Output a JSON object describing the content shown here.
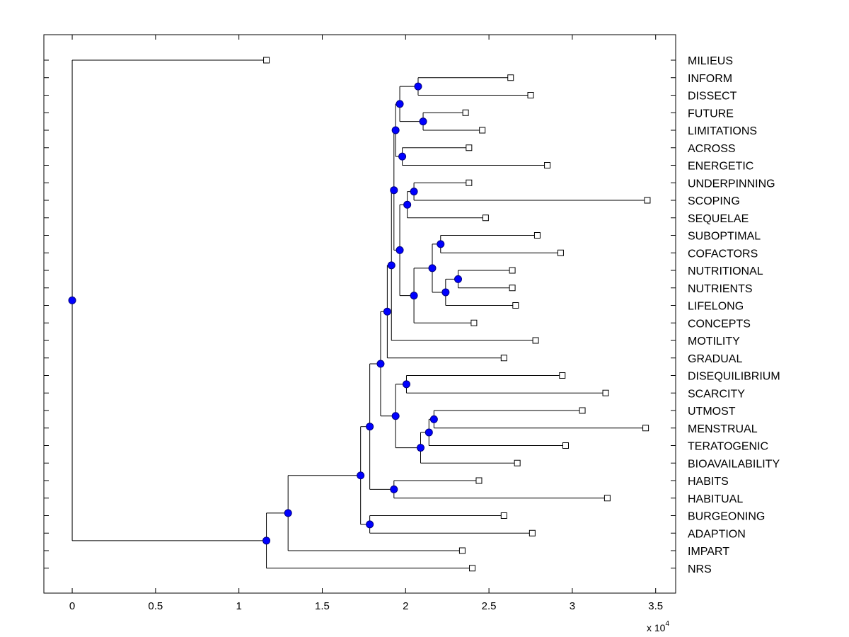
{
  "chart_data": {
    "type": "dendrogram",
    "title": "",
    "xlabel": "",
    "ylabel": "",
    "x_multiplier_label": "x 10",
    "x_multiplier_exponent": "4",
    "xlim": [
      -0.17,
      3.62
    ],
    "x_ticks": [
      {
        "value": 0,
        "label": "0"
      },
      {
        "value": 0.5,
        "label": "0.5"
      },
      {
        "value": 1,
        "label": "1"
      },
      {
        "value": 1.5,
        "label": "1.5"
      },
      {
        "value": 2,
        "label": "2"
      },
      {
        "value": 2.5,
        "label": "2.5"
      },
      {
        "value": 3,
        "label": "3"
      },
      {
        "value": 3.5,
        "label": "3.5"
      }
    ],
    "leaves": [
      {
        "label": "MILIEUS",
        "value": 1.165
      },
      {
        "label": "INFORM",
        "value": 2.63
      },
      {
        "label": "DISSECT",
        "value": 2.75
      },
      {
        "label": "FUTURE",
        "value": 2.36
      },
      {
        "label": "LIMITATIONS",
        "value": 2.46
      },
      {
        "label": "ACROSS",
        "value": 2.38
      },
      {
        "label": "ENERGETIC",
        "value": 2.85
      },
      {
        "label": "UNDERPINNING",
        "value": 2.38
      },
      {
        "label": "SCOPING",
        "value": 3.45
      },
      {
        "label": "SEQUELAE",
        "value": 2.48
      },
      {
        "label": "SUBOPTIMAL",
        "value": 2.79
      },
      {
        "label": "COFACTORS",
        "value": 2.93
      },
      {
        "label": "NUTRITIONAL",
        "value": 2.64
      },
      {
        "label": "NUTRIENTS",
        "value": 2.64
      },
      {
        "label": "LIFELONG",
        "value": 2.66
      },
      {
        "label": "CONCEPTS",
        "value": 2.41
      },
      {
        "label": "MOTILITY",
        "value": 2.78
      },
      {
        "label": "GRADUAL",
        "value": 2.59
      },
      {
        "label": "DISEQUILIBRIUM",
        "value": 2.94
      },
      {
        "label": "SCARCITY",
        "value": 3.2
      },
      {
        "label": "UTMOST",
        "value": 3.06
      },
      {
        "label": "MENSTRUAL",
        "value": 3.44
      },
      {
        "label": "TERATOGENIC",
        "value": 2.96
      },
      {
        "label": "BIOAVAILABILITY",
        "value": 2.67
      },
      {
        "label": "HABITS",
        "value": 2.44
      },
      {
        "label": "HABITUAL",
        "value": 3.21
      },
      {
        "label": "BURGEONING",
        "value": 2.59
      },
      {
        "label": "ADAPTION",
        "value": 2.76
      },
      {
        "label": "IMPART",
        "value": 2.34
      },
      {
        "label": "NRS",
        "value": 2.4
      }
    ],
    "merges": [
      {
        "id": "n_inform_dissect",
        "height": 2.075,
        "children": [
          "L1",
          "L2"
        ]
      },
      {
        "id": "n_future_limitations",
        "height": 2.105,
        "children": [
          "L3",
          "L4"
        ]
      },
      {
        "id": "n_a",
        "height": 1.965,
        "children": [
          "n_inform_dissect",
          "n_future_limitations"
        ]
      },
      {
        "id": "n_across_energetic",
        "height": 1.98,
        "children": [
          "L5",
          "L6"
        ]
      },
      {
        "id": "n_b",
        "height": 1.94,
        "children": [
          "n_a",
          "n_across_energetic"
        ]
      },
      {
        "id": "n_underpinning_scoping",
        "height": 2.05,
        "children": [
          "L7",
          "L8"
        ]
      },
      {
        "id": "n_c",
        "height": 2.01,
        "children": [
          "n_underpinning_scoping",
          "L9"
        ]
      },
      {
        "id": "n_suboptimal_cofactors",
        "height": 2.21,
        "children": [
          "L10",
          "L11"
        ]
      },
      {
        "id": "n_nutritional_nutrients",
        "height": 2.315,
        "children": [
          "L12",
          "L13"
        ]
      },
      {
        "id": "n_d",
        "height": 2.24,
        "children": [
          "n_nutritional_nutrients",
          "L14"
        ]
      },
      {
        "id": "n_e",
        "height": 2.16,
        "children": [
          "n_suboptimal_cofactors",
          "n_d"
        ]
      },
      {
        "id": "n_f",
        "height": 2.05,
        "children": [
          "n_e",
          "L15"
        ]
      },
      {
        "id": "n_g",
        "height": 1.965,
        "children": [
          "n_c",
          "n_f"
        ]
      },
      {
        "id": "n_h",
        "height": 1.93,
        "children": [
          "n_b",
          "n_g"
        ]
      },
      {
        "id": "n_i",
        "height": 1.915,
        "children": [
          "n_h",
          "L16"
        ]
      },
      {
        "id": "n_j",
        "height": 1.89,
        "children": [
          "n_i",
          "L17"
        ]
      },
      {
        "id": "n_diseq_scarcity",
        "height": 2.005,
        "children": [
          "L18",
          "L19"
        ]
      },
      {
        "id": "n_utmost_menstrual",
        "height": 2.17,
        "children": [
          "L20",
          "L21"
        ]
      },
      {
        "id": "n_k",
        "height": 2.14,
        "children": [
          "n_utmost_menstrual",
          "L22"
        ]
      },
      {
        "id": "n_l",
        "height": 2.09,
        "children": [
          "n_k",
          "L23"
        ]
      },
      {
        "id": "n_m",
        "height": 1.94,
        "children": [
          "n_diseq_scarcity",
          "n_l"
        ]
      },
      {
        "id": "n_n",
        "height": 1.85,
        "children": [
          "n_j",
          "n_m"
        ]
      },
      {
        "id": "n_habits_habitual",
        "height": 1.93,
        "children": [
          "L24",
          "L25"
        ]
      },
      {
        "id": "n_o",
        "height": 1.785,
        "children": [
          "n_n",
          "n_habits_habitual"
        ]
      },
      {
        "id": "n_burgeoning_adaption",
        "height": 1.785,
        "children": [
          "L26",
          "L27"
        ]
      },
      {
        "id": "n_p",
        "height": 1.73,
        "children": [
          "n_o",
          "n_burgeoning_adaption"
        ]
      },
      {
        "id": "n_q",
        "height": 1.295,
        "children": [
          "n_p",
          "L28"
        ]
      },
      {
        "id": "n_r",
        "height": 1.165,
        "children": [
          "n_q",
          "L29"
        ]
      },
      {
        "id": "n_root",
        "height": 0,
        "children": [
          "L0",
          "n_r"
        ]
      }
    ],
    "style": {
      "line_color": "#000000",
      "node_color": "#0000ff",
      "node_edge_color": "#000080",
      "leaf_marker_fill": "#ffffff",
      "leaf_marker_edge": "#000000"
    }
  }
}
